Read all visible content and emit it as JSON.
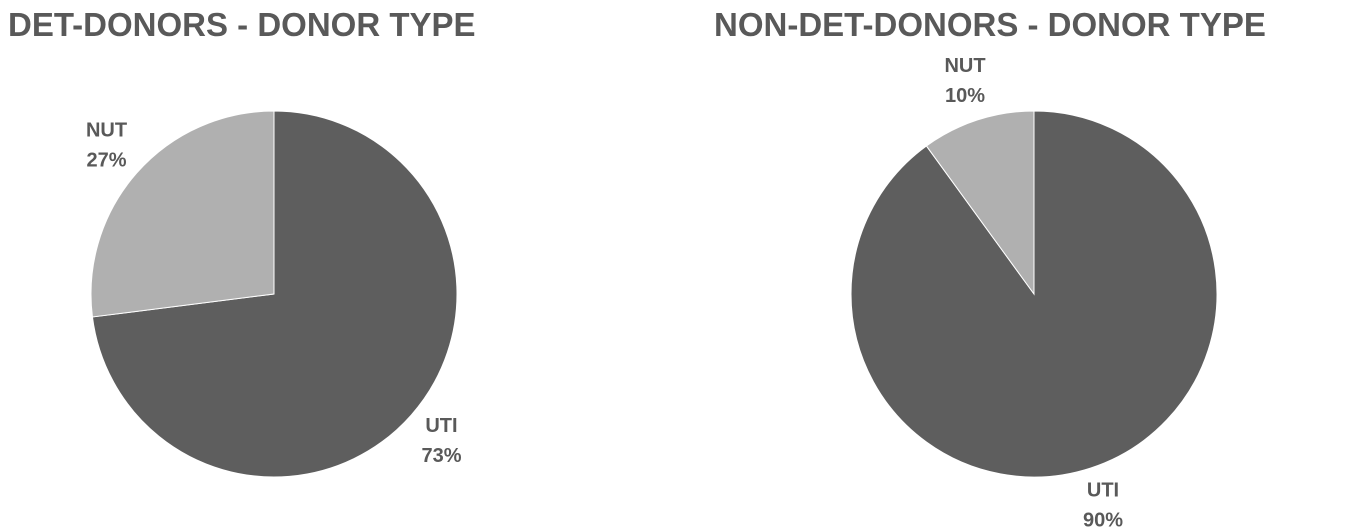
{
  "chart_data": [
    {
      "type": "pie",
      "title": "DET-DONORS - DONOR TYPE",
      "categories": [
        "UTI",
        "NUT"
      ],
      "values": [
        73,
        27
      ],
      "value_labels": [
        "73%",
        "27%"
      ],
      "colors": [
        "#5e5e5e",
        "#b0b0b0"
      ]
    },
    {
      "type": "pie",
      "title": "NON-DET-DONORS - DONOR TYPE",
      "categories": [
        "UTI",
        "NUT"
      ],
      "values": [
        90,
        10
      ],
      "value_labels": [
        "90%",
        "10%"
      ],
      "colors": [
        "#5e5e5e",
        "#b0b0b0"
      ]
    }
  ]
}
